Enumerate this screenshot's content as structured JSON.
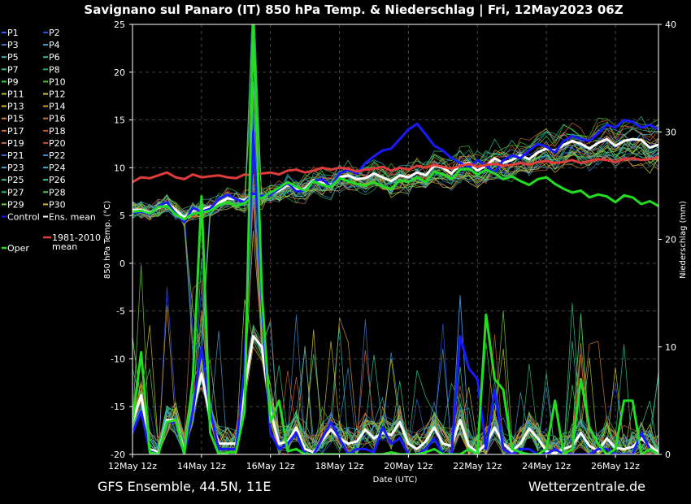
{
  "chart_data": {
    "type": "line",
    "title": "Savignano sul Panaro  (IT)  850 hPa Temp. & Niederschlag | Fri, 12May2023 06Z",
    "ylabel": "850 hPa Temp. (°C)",
    "y2label": "Niederschlag (mm)",
    "xlabel": "Date (UTC)",
    "ylim": [
      -20,
      25
    ],
    "y2lim": [
      0,
      40
    ],
    "yticks": [
      "25",
      "20",
      "15",
      "10",
      "5",
      "0",
      "-5",
      "-10",
      "-15",
      "-20"
    ],
    "y2ticks": [
      "40",
      "30",
      "20",
      "10",
      "0"
    ],
    "xticks": [
      "12May 12z",
      "14May 12z",
      "16May 12z",
      "18May 12z",
      "20May 12z",
      "22May 12z",
      "24May 12z",
      "26May 12z"
    ],
    "x_step_hours": 6,
    "x_start": "12May 12z",
    "grid": true,
    "legend_placement": "left",
    "footer_left": "GFS Ensemble, 44.5N, 11E",
    "footer_right": "Wetterzentrale.de",
    "legend": [
      {
        "label": "P1",
        "color": "#3355ff"
      },
      {
        "label": "P2",
        "color": "#2255dd"
      },
      {
        "label": "P3",
        "color": "#4d79c7"
      },
      {
        "label": "P4",
        "color": "#3fa0c8"
      },
      {
        "label": "P5",
        "color": "#3ab0b0"
      },
      {
        "label": "P6",
        "color": "#33c28a"
      },
      {
        "label": "P7",
        "color": "#2fc48e"
      },
      {
        "label": "P8",
        "color": "#2aa86a"
      },
      {
        "label": "P9",
        "color": "#39d23a"
      },
      {
        "label": "P10",
        "color": "#55c025"
      },
      {
        "label": "P11",
        "color": "#a8c83a"
      },
      {
        "label": "P12",
        "color": "#d0c53c"
      },
      {
        "label": "P13",
        "color": "#d4b830"
      },
      {
        "label": "P14",
        "color": "#d09a2a"
      },
      {
        "label": "P15",
        "color": "#cc7e3c"
      },
      {
        "label": "P16",
        "color": "#c8703a"
      },
      {
        "label": "P17",
        "color": "#d06a3a"
      },
      {
        "label": "P18",
        "color": "#c85a2a"
      },
      {
        "label": "P19",
        "color": "#cc6a4a"
      },
      {
        "label": "P20",
        "color": "#d04a3a"
      },
      {
        "label": "P21",
        "color": "#3a6acc"
      },
      {
        "label": "P22",
        "color": "#3a8ad0"
      },
      {
        "label": "P23",
        "color": "#4aa0d0"
      },
      {
        "label": "P24",
        "color": "#3ab0c8"
      },
      {
        "label": "P25",
        "color": "#3ac0a0"
      },
      {
        "label": "P26",
        "color": "#3acc90"
      },
      {
        "label": "P27",
        "color": "#30b870"
      },
      {
        "label": "P28",
        "color": "#48c850"
      },
      {
        "label": "P29",
        "color": "#70d040"
      },
      {
        "label": "P30",
        "color": "#c8c020"
      },
      {
        "label": "Control",
        "color": "#1a1aff"
      },
      {
        "label": "Ens. mean",
        "color": "#ffffff"
      },
      {
        "label": "1981-2010 mean",
        "color": "#e03c3c"
      },
      {
        "label": "Oper",
        "color": "#22dd22"
      }
    ],
    "series": [
      {
        "name": "Ens. mean",
        "kind": "temp",
        "color": "#ffffff",
        "values": [
          5.6,
          5.6,
          5.3,
          5.8,
          6.3,
          5.6,
          4.8,
          5.5,
          5.6,
          5.9,
          6.3,
          6.8,
          6.7,
          6.6,
          7.2,
          6.9,
          7.3,
          7.6,
          8.2,
          7.8,
          7.8,
          8.7,
          8.4,
          8.2,
          9.0,
          9.2,
          8.8,
          8.9,
          9.4,
          9.0,
          8.6,
          9.2,
          9.0,
          9.5,
          9.2,
          10.2,
          10.0,
          9.4,
          10.3,
          10.5,
          9.7,
          10.2,
          11.0,
          10.5,
          10.8,
          11.3,
          10.9,
          11.6,
          12.0,
          11.8,
          12.4,
          12.8,
          12.5,
          12.0,
          12.6,
          13.0,
          12.3,
          12.8,
          13.0,
          12.9,
          12.1,
          12.4
        ]
      },
      {
        "name": "Control",
        "kind": "temp",
        "color": "#1a1aff",
        "values": [
          5.3,
          5.4,
          5.1,
          6.0,
          6.4,
          5.2,
          4.3,
          5.8,
          5.4,
          5.7,
          6.7,
          7.2,
          6.7,
          6.4,
          7.3,
          7.0,
          7.2,
          7.8,
          8.4,
          7.5,
          7.6,
          8.6,
          8.8,
          8.0,
          9.4,
          9.8,
          9.4,
          10.5,
          11.2,
          11.8,
          12.0,
          13.0,
          14.0,
          14.6,
          13.5,
          12.3,
          11.8,
          11.0,
          10.5,
          10.0,
          10.8,
          10.2,
          9.5,
          10.8,
          11.3,
          11.0,
          11.8,
          12.5,
          12.2,
          11.6,
          12.8,
          13.3,
          13.0,
          12.8,
          13.6,
          14.5,
          14.2,
          15.0,
          14.8,
          14.2,
          14.5,
          14.0
        ]
      },
      {
        "name": "Oper",
        "kind": "temp",
        "color": "#22dd22",
        "values": [
          5.4,
          5.5,
          5.2,
          5.9,
          6.0,
          5.1,
          4.6,
          5.2,
          5.3,
          5.5,
          6.1,
          6.4,
          6.0,
          6.3,
          7.0,
          6.8,
          7.4,
          7.9,
          8.5,
          8.0,
          7.6,
          8.6,
          8.2,
          8.0,
          8.9,
          8.6,
          8.3,
          8.1,
          8.5,
          8.0,
          7.8,
          8.7,
          8.5,
          9.0,
          8.5,
          9.6,
          9.3,
          8.8,
          9.8,
          9.9,
          9.3,
          9.8,
          9.4,
          8.8,
          9.1,
          8.6,
          8.2,
          8.8,
          9.0,
          8.3,
          7.8,
          7.4,
          7.6,
          6.9,
          7.2,
          7.0,
          6.4,
          7.1,
          6.9,
          6.2,
          6.5,
          6.0
        ]
      },
      {
        "name": "1981-2010 mean",
        "kind": "temp",
        "color": "#e03c3c",
        "values": [
          8.5,
          9.0,
          8.9,
          9.2,
          9.5,
          9.0,
          8.8,
          9.3,
          9.0,
          9.1,
          9.2,
          9.0,
          8.9,
          9.3,
          9.2,
          9.4,
          9.5,
          9.3,
          9.7,
          9.8,
          9.5,
          9.7,
          10.0,
          9.8,
          10.0,
          9.9,
          9.6,
          9.8,
          9.9,
          10.1,
          9.7,
          10.0,
          9.8,
          10.2,
          10.0,
          10.3,
          10.1,
          9.9,
          10.2,
          10.4,
          10.1,
          10.3,
          10.4,
          10.2,
          10.3,
          10.5,
          10.3,
          10.6,
          10.7,
          10.5,
          10.6,
          10.8,
          10.5,
          10.7,
          10.9,
          10.8,
          10.6,
          10.9,
          11.0,
          10.8,
          10.9,
          11.1
        ]
      },
      {
        "name": "Ens. mean",
        "kind": "precip",
        "color": "#ffffff",
        "values": [
          3.0,
          5.5,
          0.5,
          0.2,
          3.2,
          3.2,
          0.3,
          4.0,
          7.5,
          3.5,
          1.0,
          1.0,
          1.0,
          6.0,
          11.0,
          10.0,
          4.0,
          1.0,
          1.2,
          2.5,
          0.5,
          0.2,
          1.3,
          2.3,
          1.5,
          1.0,
          1.2,
          2.3,
          1.5,
          2.0,
          1.8,
          3.0,
          1.0,
          0.5,
          1.2,
          2.5,
          1.0,
          0.8,
          3.2,
          0.8,
          0.2,
          1.0,
          2.5,
          1.0,
          0.3,
          1.0,
          2.4,
          1.5,
          0.3,
          0.1,
          0.5,
          0.8,
          2.0,
          0.8,
          0.3,
          1.5,
          0.6,
          0.5,
          0.7,
          1.5,
          0.8,
          0.2
        ]
      },
      {
        "name": "Control",
        "kind": "precip",
        "color": "#1a1aff",
        "values": [
          2.0,
          4.0,
          0.3,
          0.0,
          3.0,
          3.0,
          0.0,
          4.0,
          10.0,
          4.0,
          0.5,
          0.5,
          0.5,
          8.0,
          30.0,
          14.0,
          2.0,
          0.5,
          1.0,
          2.0,
          0.0,
          0.0,
          1.5,
          3.0,
          1.5,
          0.0,
          0.5,
          0.5,
          0.2,
          2.5,
          1.0,
          1.5,
          0.0,
          0.0,
          0.5,
          1.5,
          0.0,
          0.0,
          11.0,
          8.0,
          7.0,
          0.5,
          6.0,
          0.5,
          0.0,
          0.5,
          0.5,
          0.0,
          0.0,
          0.5,
          0.0,
          0.0,
          0.0,
          0.0,
          0.5,
          0.5,
          0.0,
          0.0,
          0.0,
          2.0,
          0.5,
          0.0
        ]
      },
      {
        "name": "Oper",
        "kind": "precip",
        "color": "#22dd22",
        "values": [
          3.0,
          9.5,
          0.2,
          0.0,
          3.0,
          3.2,
          0.0,
          7.0,
          24.0,
          2.0,
          0.0,
          0.2,
          0.2,
          4.0,
          40.0,
          15.0,
          3.0,
          5.0,
          0.3,
          0.5,
          0.0,
          0.0,
          0.0,
          0.0,
          0.0,
          0.0,
          0.0,
          0.0,
          0.0,
          0.0,
          0.2,
          0.0,
          0.0,
          0.0,
          0.2,
          0.5,
          0.0,
          0.0,
          0.0,
          0.5,
          0.0,
          13.0,
          7.0,
          6.0,
          0.5,
          0.2,
          0.0,
          0.0,
          0.5,
          5.0,
          0.0,
          0.5,
          7.0,
          2.5,
          1.0,
          0.0,
          0.5,
          5.0,
          5.0,
          0.0,
          0.5,
          0.0
        ]
      }
    ],
    "members": [
      {
        "name": "P1",
        "color": "#3355ff"
      },
      {
        "name": "P2",
        "color": "#2255dd"
      },
      {
        "name": "P3",
        "color": "#4d79c7"
      },
      {
        "name": "P4",
        "color": "#3fa0c8"
      },
      {
        "name": "P5",
        "color": "#3ab0b0"
      },
      {
        "name": "P6",
        "color": "#33c28a"
      },
      {
        "name": "P7",
        "color": "#2fc48e"
      },
      {
        "name": "P8",
        "color": "#2aa86a"
      },
      {
        "name": "P9",
        "color": "#39d23a"
      },
      {
        "name": "P10",
        "color": "#55c025"
      },
      {
        "name": "P11",
        "color": "#a8c83a"
      },
      {
        "name": "P12",
        "color": "#d0c53c"
      },
      {
        "name": "P13",
        "color": "#d4b830"
      },
      {
        "name": "P14",
        "color": "#d09a2a"
      },
      {
        "name": "P15",
        "color": "#cc7e3c"
      },
      {
        "name": "P16",
        "color": "#c8703a"
      },
      {
        "name": "P17",
        "color": "#d06a3a"
      },
      {
        "name": "P18",
        "color": "#c85a2a"
      },
      {
        "name": "P19",
        "color": "#cc6a4a"
      },
      {
        "name": "P20",
        "color": "#d04a3a"
      },
      {
        "name": "P21",
        "color": "#3a6acc"
      },
      {
        "name": "P22",
        "color": "#3a8ad0"
      },
      {
        "name": "P23",
        "color": "#4aa0d0"
      },
      {
        "name": "P24",
        "color": "#3ab0c8"
      },
      {
        "name": "P25",
        "color": "#3ac0a0"
      },
      {
        "name": "P26",
        "color": "#3acc90"
      },
      {
        "name": "P27",
        "color": "#30b870"
      },
      {
        "name": "P28",
        "color": "#48c850"
      },
      {
        "name": "P29",
        "color": "#70d040"
      },
      {
        "name": "P30",
        "color": "#c8c020"
      }
    ]
  }
}
